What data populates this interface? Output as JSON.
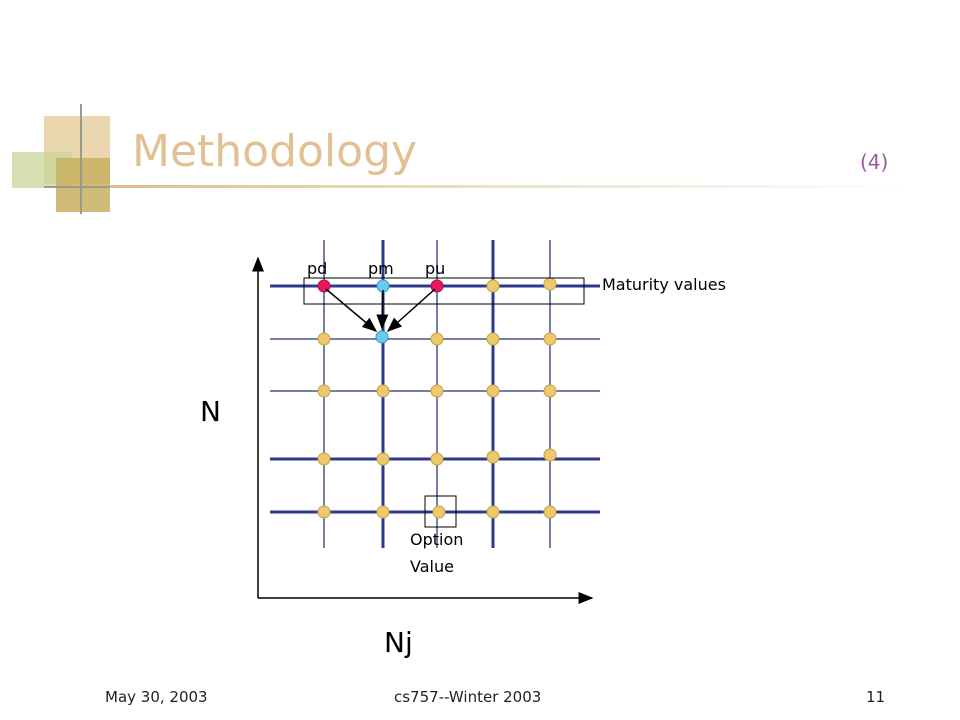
{
  "slide": {
    "title": "Methodology",
    "title_number": "(4)"
  },
  "diagram": {
    "node_labels": {
      "pd": "pd",
      "pm": "pm",
      "pu": "pu"
    },
    "maturity_label": "Maturity values",
    "option_label_line1": "Option",
    "option_label_line2": "Value",
    "axis_y_label": "N",
    "axis_x_label": "Nj"
  },
  "footer": {
    "date": "May 30, 2003",
    "course": "cs757--Winter 2003",
    "page": "11"
  },
  "colors": {
    "title": "#e3c091",
    "title_number": "#9b5aa0",
    "grid_line": "#2d3a8c",
    "grid_line_light": "#7480a8",
    "node_default": "#ecc96c",
    "node_pd_pu": "#e8185c",
    "node_pm": "#66ccf0"
  }
}
